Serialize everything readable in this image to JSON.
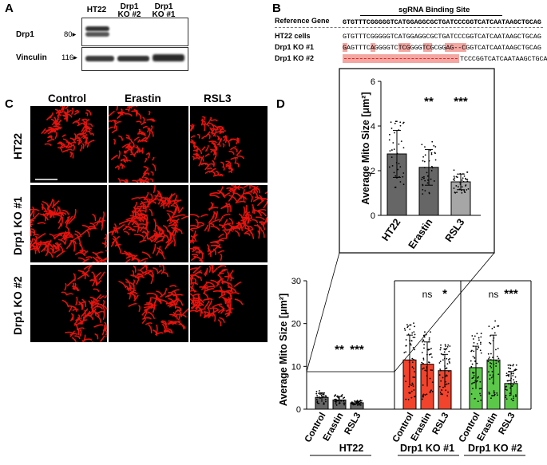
{
  "panels": {
    "A": "A",
    "B": "B",
    "C": "C",
    "D": "D"
  },
  "panelA": {
    "lanes": [
      "HT22",
      "Drp1 KO #2",
      "Drp1 KO #1"
    ],
    "lanes_line2": [
      "",
      "KO #2",
      "KO #1"
    ],
    "lanes_line1": [
      "HT22",
      "Drp1",
      "Drp1"
    ],
    "blots": [
      {
        "name": "Drp1",
        "mw": "80"
      },
      {
        "name": "Vinculin",
        "mw": "116"
      }
    ]
  },
  "panelB": {
    "header": "sgRNA Binding Site",
    "rows": [
      {
        "label": "Reference Gene",
        "seq": "GTGTTTCGGGGGTCATGGAGGCGCTGATCCCGGTCATCAATAAGCTGCAG"
      },
      {
        "label": "HT22 cells",
        "seq": "GTGTTTCGGGGGTCATGGAGGCGCTGATCCCGGTCATCAATAAGCTGCAG"
      },
      {
        "label": "Drp1 KO #1",
        "seq": "GAGTTTCAGGGGTCTCGGGGTCGCGGAG--CGGTCATCAATAAGCTGCAG"
      },
      {
        "label": "Drp1 KO #2",
        "seq": "TCCCGGTCATCAATAAGCTGCAG"
      }
    ]
  },
  "panelC": {
    "columns": [
      "Control",
      "Erastin",
      "RSL3"
    ],
    "rows": [
      "HT22",
      "Drp1 KO #1",
      "Drp1 KO #2"
    ]
  },
  "colors": {
    "gray": "#666666",
    "lightgray": "#a6a6a6",
    "red": "#f2432c",
    "green": "#5cc84a",
    "mito": "#e8120c"
  },
  "chart_data": [
    {
      "type": "bar",
      "ylabel": "Average Mito Size [μm²]",
      "ylim": [
        0,
        6
      ],
      "yticks": [
        "0",
        "2",
        "4",
        "6"
      ],
      "categories": [
        "HT22",
        "Erastin",
        "RSL3"
      ],
      "values": [
        2.75,
        2.15,
        1.5
      ],
      "errors": [
        1.05,
        0.8,
        0.35
      ],
      "significance": [
        "",
        "**",
        "***"
      ]
    },
    {
      "type": "bar",
      "ylabel": "Average Mito Size [μm²]",
      "ylim": [
        0,
        30
      ],
      "yticks": [
        "0",
        "10",
        "20",
        "30"
      ],
      "groups": [
        "HT22",
        "Drp1 KO #1",
        "Drp1 KO #2"
      ],
      "categories": [
        "Control",
        "Erastin",
        "RSL3"
      ],
      "series": [
        {
          "group": "HT22",
          "values": [
            2.75,
            2.15,
            1.5
          ],
          "errors": [
            1.05,
            0.8,
            0.35
          ],
          "significance": [
            "",
            "**",
            "***"
          ]
        },
        {
          "group": "Drp1 KO #1",
          "values": [
            11.5,
            10.5,
            9.0
          ],
          "errors": [
            5.8,
            5.2,
            3.8
          ],
          "significance": [
            "",
            "ns",
            "*"
          ]
        },
        {
          "group": "Drp1 KO #2",
          "values": [
            9.7,
            11.5,
            6.0
          ],
          "errors": [
            5.0,
            5.8,
            2.8
          ],
          "significance": [
            "",
            "ns",
            "***"
          ]
        }
      ]
    }
  ]
}
